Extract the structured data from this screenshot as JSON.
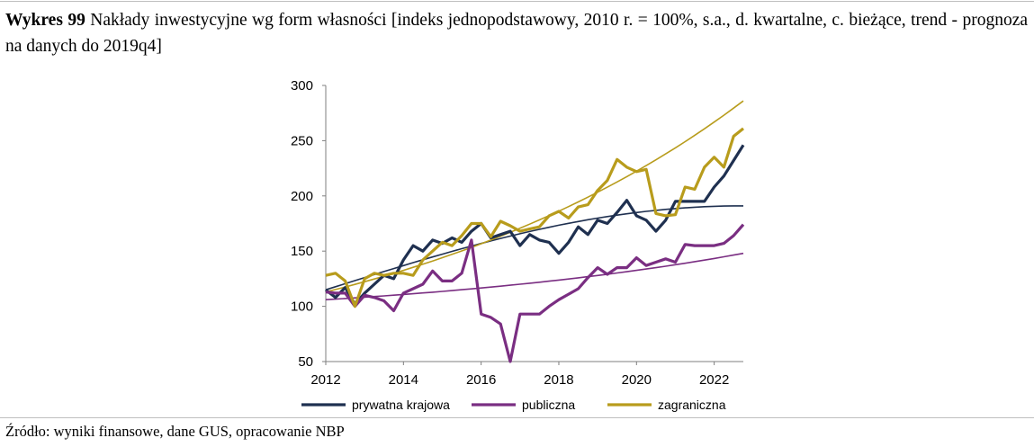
{
  "caption": {
    "label": "Wykres 99",
    "text": "Nakłady inwestycyjne wg form własności [indeks jednopodstawowy, 2010 r. = 100%, s.a., d. kwartalne, c. bieżące, trend - prognoza na danych do 2019q4]"
  },
  "source": "Źródło: wyniki finansowe, dane GUS, opracowanie NBP",
  "chart_data": {
    "type": "line",
    "xlim": [
      2012,
      2022.75
    ],
    "ylim": [
      50,
      300
    ],
    "x_ticks": [
      2012,
      2014,
      2016,
      2018,
      2020,
      2022
    ],
    "y_ticks": [
      50,
      100,
      150,
      200,
      250,
      300
    ],
    "quarter_start": 2012,
    "quarter_step": 0.25,
    "legend_position": "bottom",
    "grid": false,
    "series": [
      {
        "name": "prywatna krajowa",
        "color": "#1f3050",
        "values": [
          115,
          108,
          117,
          102,
          112,
          120,
          128,
          125,
          142,
          155,
          150,
          160,
          157,
          162,
          158,
          168,
          175,
          162,
          165,
          168,
          155,
          165,
          160,
          158,
          148,
          158,
          172,
          165,
          178,
          175,
          185,
          196,
          182,
          178,
          168,
          178,
          195,
          195,
          195,
          195,
          208,
          218,
          232,
          246
        ]
      },
      {
        "name": "publiczna",
        "color": "#7a2e82",
        "values": [
          113,
          112,
          112,
          100,
          110,
          108,
          105,
          96,
          112,
          116,
          120,
          132,
          123,
          123,
          130,
          160,
          93,
          90,
          84,
          50,
          93,
          93,
          93,
          100,
          106,
          111,
          116,
          126,
          135,
          129,
          135,
          135,
          144,
          137,
          140,
          143,
          140,
          156,
          155,
          155,
          155,
          157,
          164,
          174
        ]
      },
      {
        "name": "zagraniczna",
        "color": "#b89c1c",
        "values": [
          128,
          130,
          123,
          100,
          125,
          130,
          128,
          130,
          130,
          128,
          142,
          150,
          158,
          155,
          164,
          175,
          175,
          163,
          177,
          173,
          168,
          170,
          172,
          182,
          186,
          180,
          190,
          192,
          205,
          214,
          233,
          226,
          222,
          224,
          184,
          182,
          183,
          208,
          206,
          226,
          235,
          226,
          254,
          261
        ]
      },
      {
        "name": "",
        "color": "#1f3050",
        "trend": true,
        "start": 115,
        "end": 191,
        "shape": "concave"
      },
      {
        "name": "",
        "color": "#7a2e82",
        "trend": true,
        "start": 106,
        "end": 148,
        "shape": "convex"
      },
      {
        "name": "",
        "color": "#b89c1c",
        "trend": true,
        "start": 113,
        "end": 286,
        "shape": "convex"
      }
    ]
  }
}
